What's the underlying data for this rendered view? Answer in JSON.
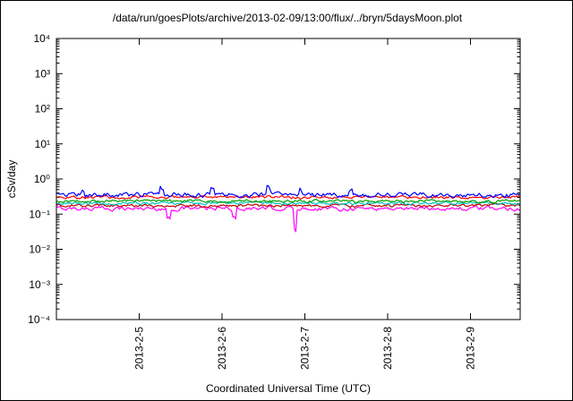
{
  "frame": {
    "background": "#ffffff",
    "border_color": "#000000"
  },
  "chart_data": {
    "type": "line",
    "title": "/data/run/goesPlots/archive/2013-02-09/13:00/flux/../bryn/5daysMoon.plot",
    "xlabel": "Coordinated Universal Time (UTC)",
    "ylabel": "cSv/day",
    "y_scale": "log",
    "ylim": [
      0.0001,
      10000
    ],
    "y_tick_exponents": [
      4,
      3,
      2,
      1,
      0,
      -1,
      -2,
      -3,
      -4
    ],
    "y_tick_labels": [
      "10⁴",
      "10³",
      "10²",
      "10¹",
      "10⁰",
      "10⁻¹",
      "10⁻²",
      "10⁻³",
      "10⁻⁴"
    ],
    "x_tick_labels": [
      "2013-2-5",
      "2013-2-6",
      "2013-2-7",
      "2013-2-8",
      "2013-2-9"
    ],
    "x_tick_days": [
      1,
      2,
      3,
      4,
      5
    ],
    "x_range_days": [
      0,
      5.6
    ],
    "grid": false,
    "legend": "none",
    "series": [
      {
        "name": "flux-trace-magenta",
        "color": "#ff00ff",
        "level": 0.145,
        "noise": 0.1,
        "spikes": [
          {
            "x": 1.35,
            "v": 0.075
          },
          {
            "x": 2.15,
            "v": 0.08
          },
          {
            "x": 2.88,
            "v": 0.035
          }
        ]
      },
      {
        "name": "flux-trace-darkred",
        "color": "#c00000",
        "level": 0.175,
        "noise": 0.07,
        "spikes": []
      },
      {
        "name": "flux-trace-cyan",
        "color": "#00c0c0",
        "level": 0.205,
        "noise": 0.07,
        "spikes": []
      },
      {
        "name": "flux-trace-green",
        "color": "#00a000",
        "level": 0.235,
        "noise": 0.07,
        "spikes": []
      },
      {
        "name": "flux-trace-red",
        "color": "#ff0000",
        "level": 0.305,
        "noise": 0.07,
        "spikes": []
      },
      {
        "name": "flux-trace-blue",
        "color": "#0000ff",
        "level": 0.355,
        "noise": 0.11,
        "spikes": [
          {
            "x": 0.32,
            "v": 0.5
          },
          {
            "x": 1.27,
            "v": 0.55
          },
          {
            "x": 1.88,
            "v": 0.52
          },
          {
            "x": 2.56,
            "v": 0.58
          },
          {
            "x": 2.95,
            "v": 0.5
          },
          {
            "x": 3.55,
            "v": 0.48
          }
        ]
      }
    ]
  }
}
